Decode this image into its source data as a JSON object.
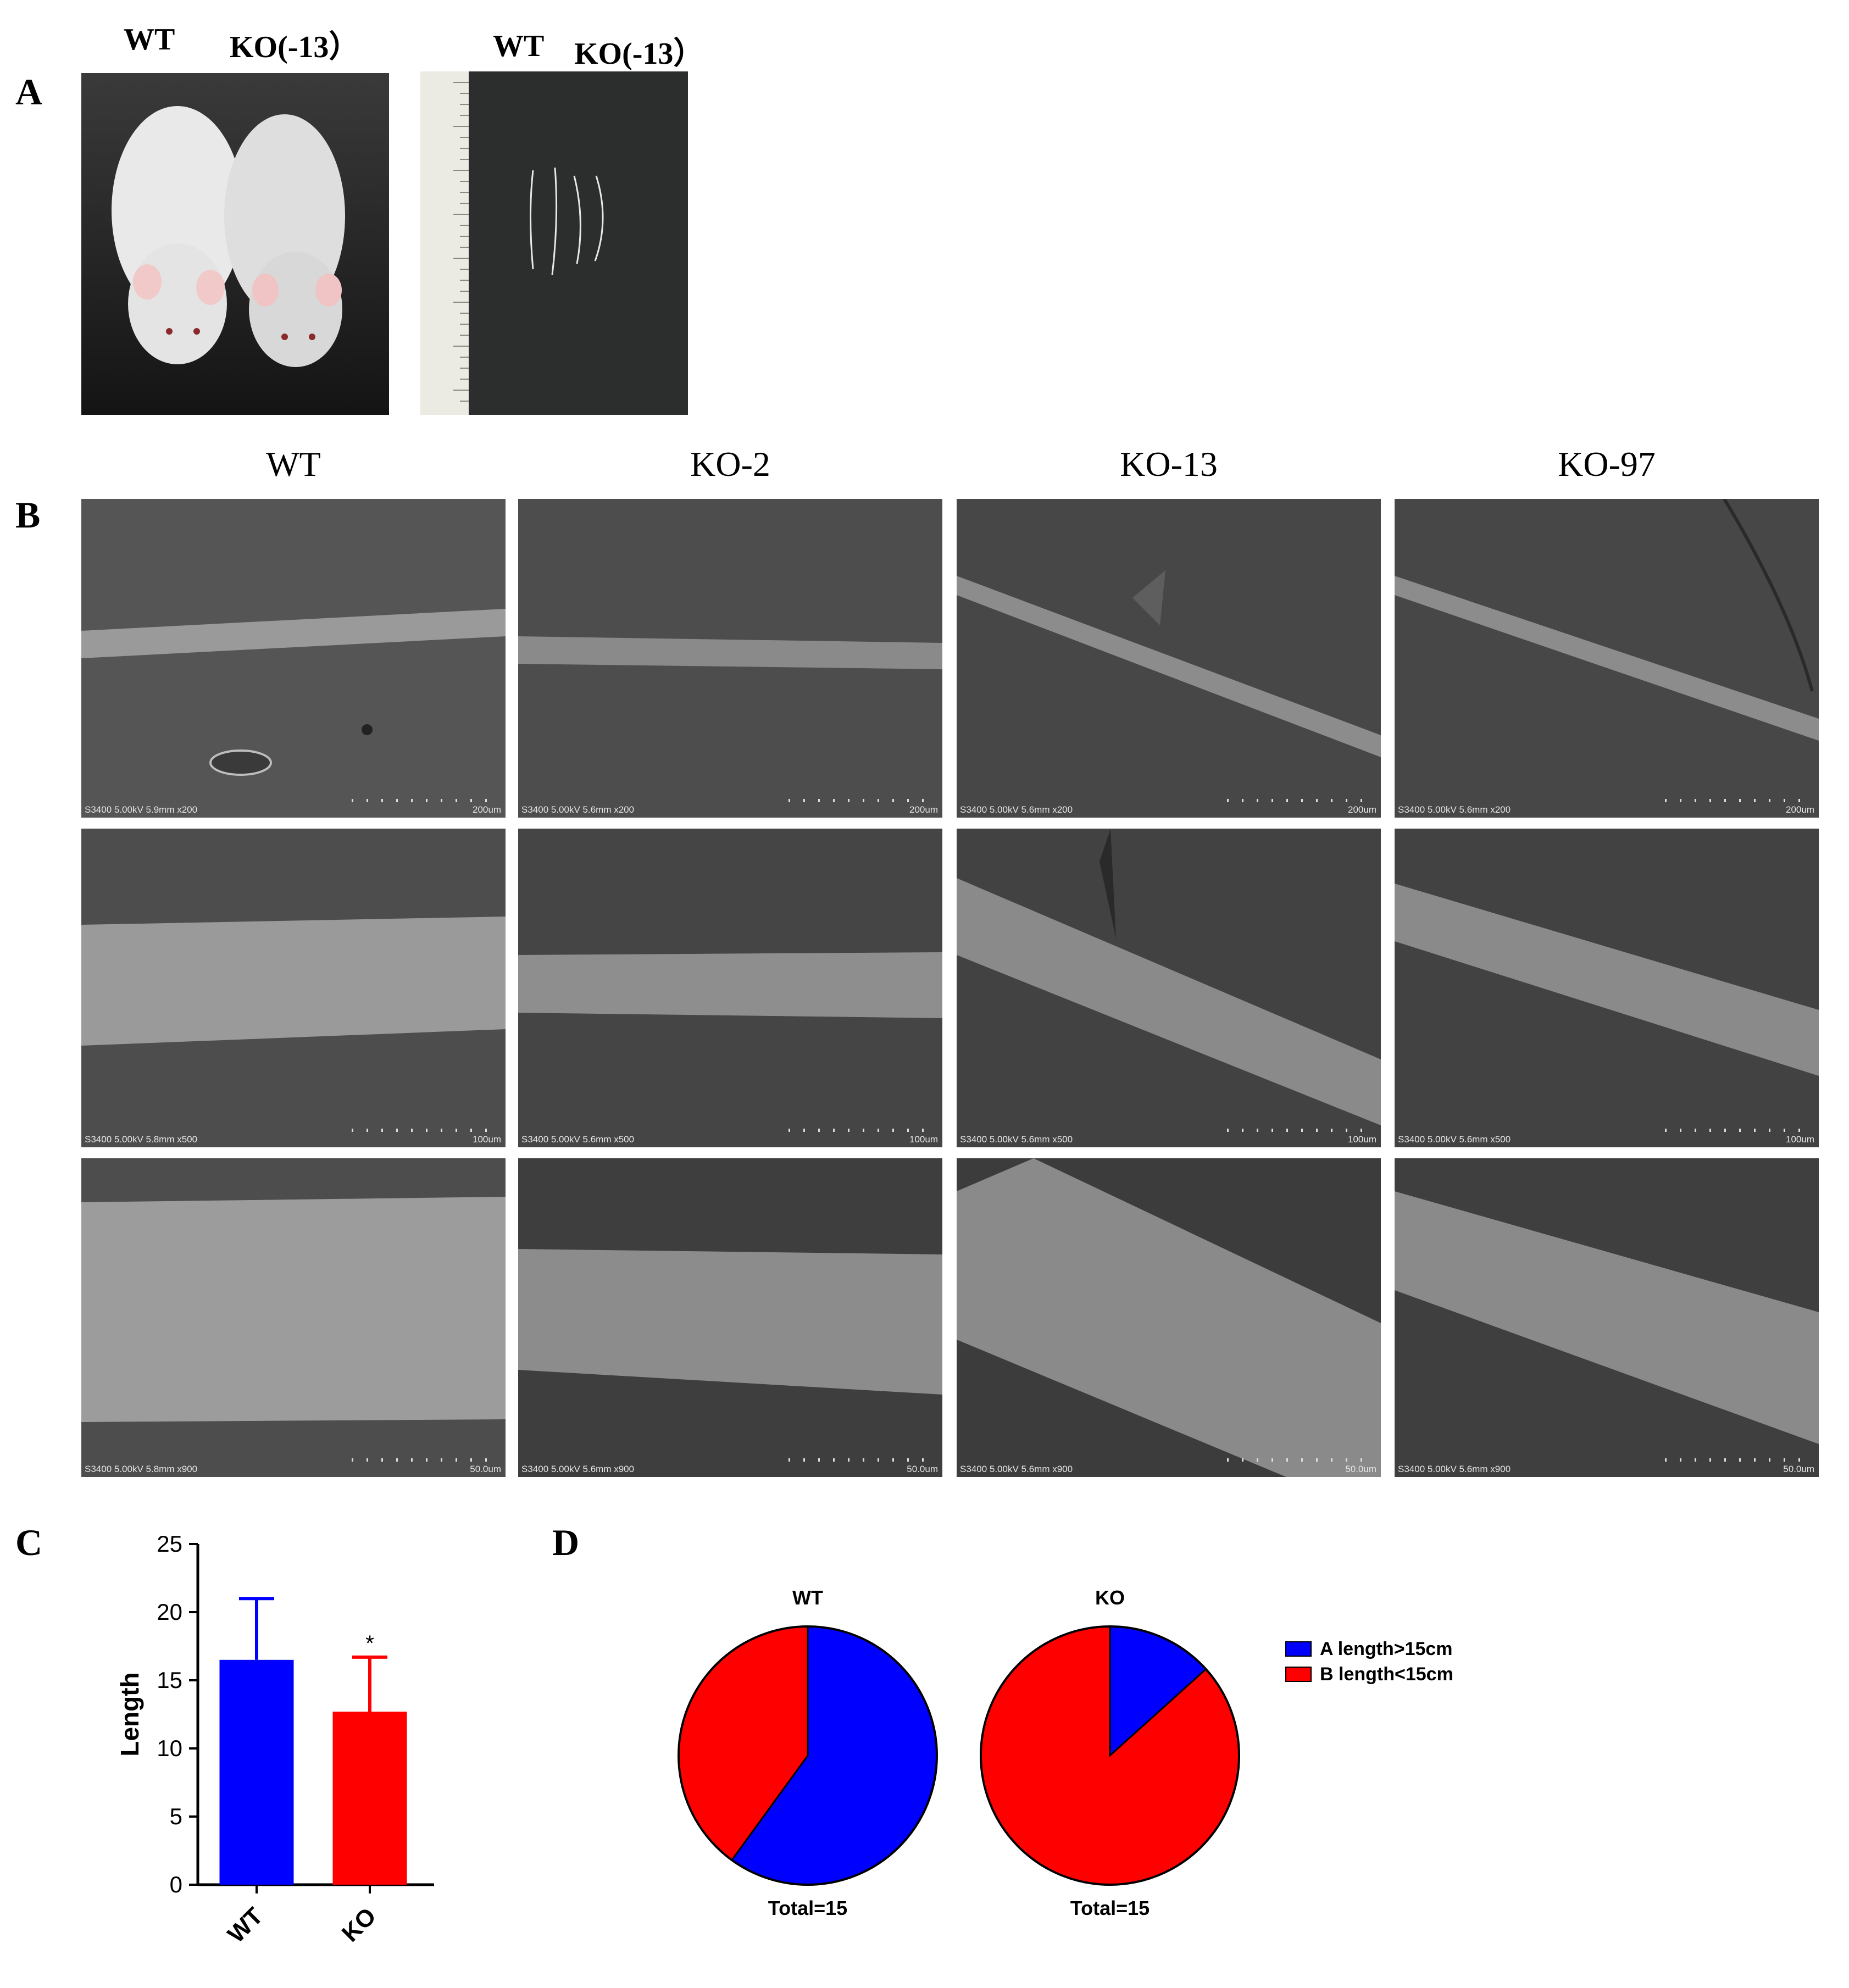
{
  "panel_a": {
    "letter": "A",
    "photo1_labels": [
      "WT",
      "KO(-13）"
    ],
    "photo2_labels": [
      "WT",
      "KO(-13）"
    ]
  },
  "panel_b": {
    "letter": "B",
    "columns": [
      "WT",
      "KO-2",
      "KO-13",
      "KO-97"
    ],
    "rows": [
      {
        "scale": "200um",
        "info": [
          "S3400 5.00kV 5.9mm x200",
          "S3400 5.00kV 5.6mm x200",
          "S3400 5.00kV 5.6mm x200",
          "S3400 5.00kV 5.6mm x200"
        ]
      },
      {
        "scale": "100um",
        "info": [
          "S3400 5.00kV 5.8mm x500",
          "S3400 5.00kV 5.6mm x500",
          "S3400 5.00kV 5.6mm x500",
          "S3400 5.00kV 5.6mm x500"
        ]
      },
      {
        "scale": "50.0um",
        "info": [
          "S3400 5.00kV 5.8mm x900",
          "S3400 5.00kV 5.6mm x900",
          "S3400 5.00kV 5.6mm x900",
          "S3400 5.00kV 5.6mm x900"
        ]
      }
    ]
  },
  "panel_c": {
    "letter": "C"
  },
  "panel_d": {
    "letter": "D"
  },
  "colors": {
    "blue": "#0000ff",
    "red": "#ff0000"
  },
  "chart_data": [
    {
      "type": "bar",
      "categories": [
        "WT",
        "KO"
      ],
      "values": [
        16.5,
        12.7
      ],
      "error": [
        4.5,
        4.0
      ],
      "significance": [
        "",
        "*"
      ],
      "colors": [
        "#0000ff",
        "#ff0000"
      ],
      "ylabel": "Length",
      "ylim": [
        0,
        25
      ],
      "yticks": [
        0,
        5,
        10,
        15,
        20,
        25
      ],
      "grid": false
    },
    {
      "type": "pie",
      "title": "WT",
      "labels": [
        "A length>15cm",
        "B length<15cm"
      ],
      "values": [
        9,
        6
      ],
      "colors": [
        "#0000ff",
        "#ff0000"
      ],
      "caption": "Total=15"
    },
    {
      "type": "pie",
      "title": "KO",
      "labels": [
        "A length>15cm",
        "B length<15cm"
      ],
      "values": [
        2,
        13
      ],
      "colors": [
        "#0000ff",
        "#ff0000"
      ],
      "caption": "Total=15"
    }
  ],
  "legend": {
    "placement": "right",
    "items": [
      {
        "label": "A length>15cm",
        "color": "#0000ff"
      },
      {
        "label": "B length<15cm",
        "color": "#ff0000"
      }
    ]
  }
}
